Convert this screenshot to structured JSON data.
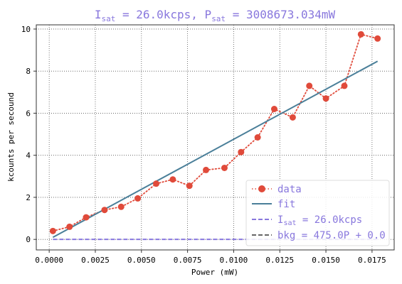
{
  "chart_data": {
    "type": "line",
    "title": {
      "prefix": "I",
      "sub1": "sat",
      "middle": " = 26.0kcps, P",
      "sub2": "sat",
      "suffix": " = 3008673.034mW"
    },
    "xlabel": "Power (mW)",
    "ylabel": "kcounts per secound",
    "xlim": [
      -0.0007,
      0.0187
    ],
    "ylim": [
      -0.5,
      10.2
    ],
    "x_ticks": [
      "0.0000",
      "0.0025",
      "0.0050",
      "0.0075",
      "0.0100",
      "0.0125",
      "0.0150",
      "0.0175"
    ],
    "x_tick_values": [
      0,
      0.0025,
      0.005,
      0.0075,
      0.01,
      0.0125,
      0.015,
      0.0175
    ],
    "y_ticks": [
      "0",
      "2",
      "4",
      "6",
      "8",
      "10"
    ],
    "y_tick_values": [
      0,
      2,
      4,
      6,
      8,
      10
    ],
    "grid": true,
    "legend_position": "lower-right",
    "series": [
      {
        "name": "data",
        "style": "dotted-markers",
        "color": "#e04a3a",
        "x": [
          0.0002,
          0.0011,
          0.002,
          0.003,
          0.0039,
          0.0048,
          0.0058,
          0.0067,
          0.0076,
          0.0085,
          0.0095,
          0.0104,
          0.0113,
          0.0122,
          0.0132,
          0.0141,
          0.015,
          0.016,
          0.0169,
          0.0178
        ],
        "y": [
          0.4,
          0.6,
          1.05,
          1.4,
          1.55,
          1.95,
          2.65,
          2.85,
          2.55,
          3.3,
          3.4,
          4.15,
          4.85,
          6.2,
          5.8,
          7.3,
          6.7,
          7.3,
          9.75,
          9.55
        ]
      },
      {
        "name": "fit",
        "style": "solid",
        "color": "#4a7f99",
        "x": [
          0.0002,
          0.0178
        ],
        "y": [
          0.1,
          8.47
        ]
      },
      {
        "name": "I_sat = 26.0kcps",
        "style": "dashed",
        "color": "#8877dd",
        "x": [
          0.0002,
          0.0178
        ],
        "y": [
          0.0,
          0.0
        ]
      },
      {
        "name": "bkg = 475.0P + 0.0",
        "style": "dashed",
        "color": "#666666",
        "x": [],
        "y": []
      }
    ],
    "legend": {
      "data": "data",
      "fit": "fit",
      "isat_prefix": "I",
      "isat_sub": "sat",
      "isat_suffix": " = 26.0kcps",
      "bkg": "bkg = 475.0P + 0.0"
    },
    "colors": {
      "data": "#e04a3a",
      "fit": "#4a7f99",
      "isat": "#8877dd",
      "bkg": "#666666",
      "title": "#8877dd"
    }
  }
}
